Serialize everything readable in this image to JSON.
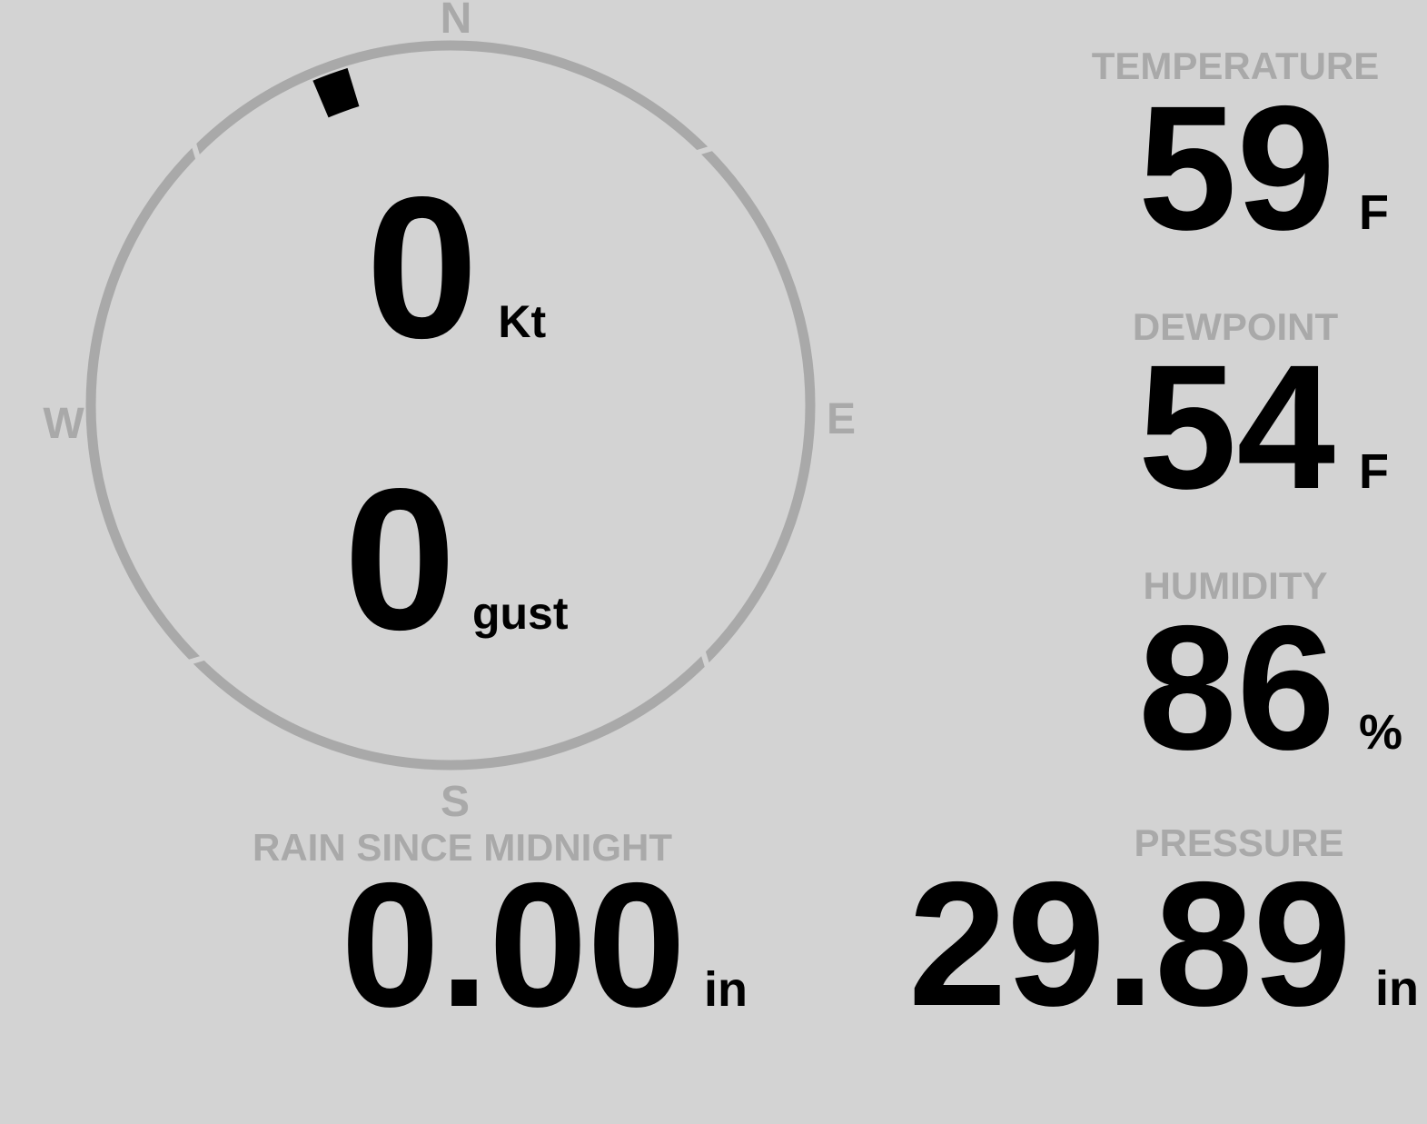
{
  "theme": {
    "background": "#d3d3d3",
    "muted_gray": "#a9a9a9",
    "value_black": "#000000"
  },
  "wind": {
    "direction_deg": 340,
    "speed": {
      "value": "0",
      "unit": "Kt"
    },
    "gust": {
      "value": "0",
      "unit": "gust"
    },
    "compass": {
      "north": "N",
      "east": "E",
      "south": "S",
      "west": "W"
    }
  },
  "metrics": {
    "temperature": {
      "label": "TEMPERATURE",
      "value": "59",
      "unit": "F"
    },
    "dewpoint": {
      "label": "DEWPOINT",
      "value": "54",
      "unit": "F"
    },
    "humidity": {
      "label": "HUMIDITY",
      "value": "86",
      "unit": "%"
    },
    "rain": {
      "label": "RAIN SINCE MIDNIGHT",
      "value": "0.00",
      "unit": "in"
    },
    "pressure": {
      "label": "PRESSURE",
      "value": "29.89",
      "unit": "in"
    }
  }
}
